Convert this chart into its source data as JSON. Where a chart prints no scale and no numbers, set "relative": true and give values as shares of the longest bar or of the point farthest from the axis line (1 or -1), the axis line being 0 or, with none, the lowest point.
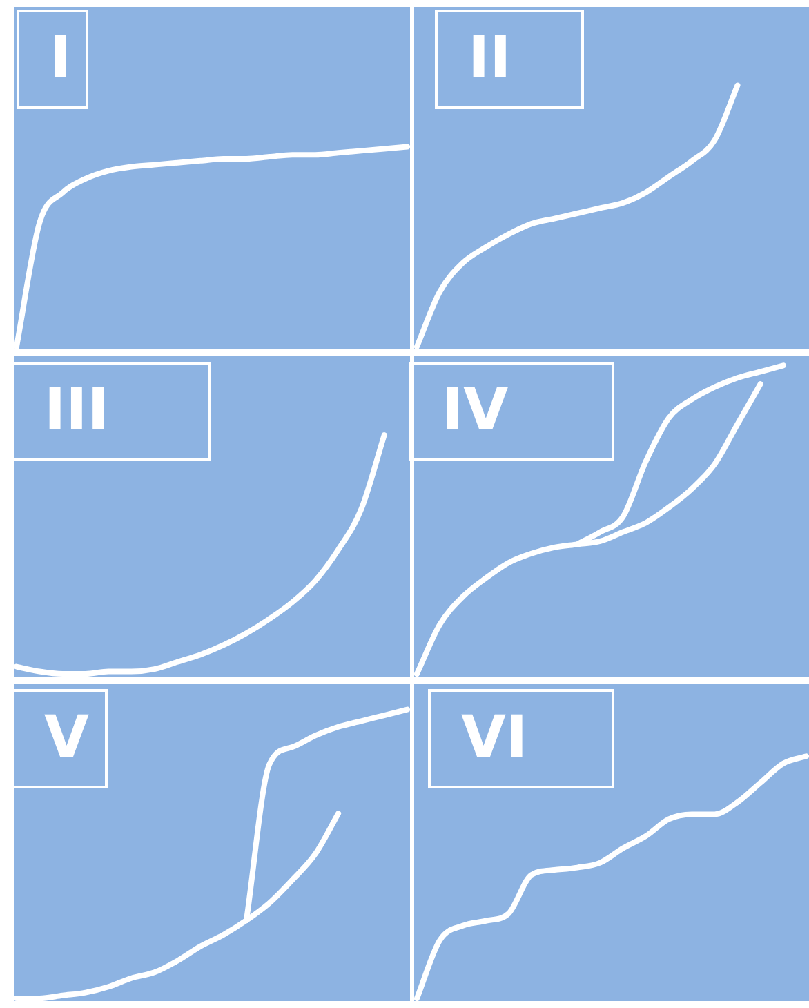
{
  "chart_data": [
    {
      "type": "line",
      "title": "I",
      "relative": true,
      "marker": "none",
      "categories": [
        null,
        null,
        null,
        null,
        null,
        null,
        null,
        null,
        null,
        null,
        null,
        null,
        null,
        null,
        null,
        null,
        null,
        null
      ],
      "series": [
        {
          "color": "#ffffff",
          "values": [
            0,
            0.62,
            0.77,
            0.84,
            0.88,
            0.9,
            0.91,
            0.92,
            0.93,
            0.94,
            0.94,
            0.95,
            0.96,
            0.96,
            0.97,
            0.98,
            0.99,
            1
          ]
        }
      ]
    },
    {
      "type": "line",
      "title": "II",
      "relative": true,
      "marker": "none",
      "categories": [
        null,
        null,
        null,
        null,
        null,
        null,
        null,
        null,
        null,
        null,
        null,
        null,
        null,
        null,
        null,
        null,
        null,
        null
      ],
      "series": [
        {
          "color": "#ffffff",
          "values": [
            0,
            0.21,
            0.32,
            0.38,
            0.43,
            0.47,
            0.49,
            0.51,
            0.53,
            0.55,
            0.59,
            0.65,
            0.71,
            0.79,
            1,
            null,
            null,
            null
          ]
        }
      ]
    },
    {
      "type": "line",
      "title": "III",
      "relative": true,
      "marker": "none",
      "categories": [
        null,
        null,
        null,
        null,
        null,
        null,
        null,
        null,
        null,
        null,
        null,
        null,
        null,
        null,
        null,
        null,
        null,
        null
      ],
      "series": [
        {
          "color": "#ffffff",
          "values": [
            0.03,
            0.01,
            0,
            0,
            0.01,
            0.01,
            0.02,
            0.05,
            0.08,
            0.12,
            0.17,
            0.23,
            0.3,
            0.39,
            0.52,
            0.69,
            1,
            null
          ]
        }
      ]
    },
    {
      "type": "line",
      "title": "IV",
      "relative": true,
      "marker": "none",
      "categories": [
        null,
        null,
        null,
        null,
        null,
        null,
        null,
        null,
        null,
        null,
        null,
        null,
        null,
        null,
        null,
        null,
        null,
        null
      ],
      "series": [
        {
          "color": "#ffffff",
          "values": [
            0,
            0.16,
            0.25,
            0.31,
            0.36,
            0.39,
            0.41,
            0.42,
            0.43,
            0.46,
            0.49,
            0.54,
            0.6,
            0.68,
            0.81,
            0.94,
            null,
            null
          ]
        },
        {
          "color": "#ffffff",
          "values": [
            null,
            null,
            null,
            null,
            null,
            null,
            null,
            0.42,
            0.46,
            0.51,
            0.69,
            0.83,
            0.89,
            0.93,
            0.96,
            0.98,
            1,
            null
          ]
        }
      ]
    },
    {
      "type": "line",
      "title": "V",
      "relative": true,
      "marker": "none",
      "categories": [
        null,
        null,
        null,
        null,
        null,
        null,
        null,
        null,
        null,
        null,
        null,
        null,
        null,
        null,
        null,
        null,
        null,
        null
      ],
      "series": [
        {
          "color": "#ffffff",
          "values": [
            0,
            0,
            0.01,
            0.02,
            0.04,
            0.07,
            0.09,
            0.13,
            0.18,
            0.22,
            0.27,
            0.33,
            0.41,
            0.5,
            0.64,
            null,
            null,
            null
          ]
        },
        {
          "color": "#ffffff",
          "values": [
            null,
            null,
            null,
            null,
            null,
            null,
            null,
            null,
            null,
            null,
            0.27,
            0.81,
            0.87,
            0.91,
            0.94,
            0.96,
            0.98,
            1
          ]
        }
      ]
    },
    {
      "type": "line",
      "title": "VI",
      "relative": true,
      "marker": "none",
      "categories": [
        null,
        null,
        null,
        null,
        null,
        null,
        null,
        null,
        null,
        null,
        null,
        null,
        null,
        null,
        null,
        null,
        null,
        null
      ],
      "series": [
        {
          "color": "#ffffff",
          "values": [
            0,
            0.24,
            0.3,
            0.32,
            0.35,
            0.51,
            0.53,
            0.54,
            0.56,
            0.62,
            0.67,
            0.74,
            0.76,
            0.76,
            0.81,
            0.89,
            0.97,
            1
          ]
        }
      ]
    }
  ]
}
